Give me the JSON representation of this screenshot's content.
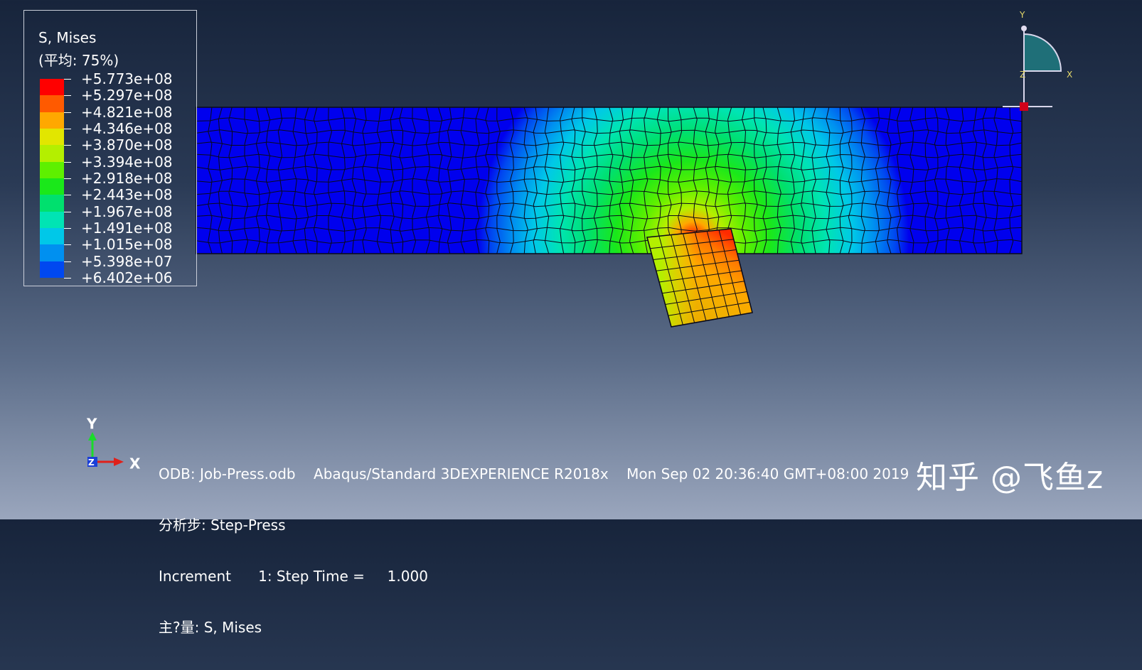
{
  "legend": {
    "title": "S, Mises",
    "subtitle": "(平均: 75%)",
    "values": [
      "+5.773e+08",
      "+5.297e+08",
      "+4.821e+08",
      "+4.346e+08",
      "+3.870e+08",
      "+3.394e+08",
      "+2.918e+08",
      "+2.443e+08",
      "+1.967e+08",
      "+1.491e+08",
      "+1.015e+08",
      "+5.398e+07",
      "+6.402e+06"
    ],
    "colors": [
      "#ff0000",
      "#ff5a00",
      "#ffa800",
      "#e2e600",
      "#b4ef00",
      "#5ef000",
      "#1ae81a",
      "#00e06e",
      "#00e4b4",
      "#00c8e8",
      "#0090f0",
      "#0048f0",
      "#0000ee"
    ]
  },
  "triad": {
    "x": "X",
    "y": "Y",
    "z": "Z"
  },
  "axis_triad": {
    "x": "X",
    "y": "Y",
    "z": "Z"
  },
  "info": {
    "line1": "ODB: Job-Press.odb    Abaqus/Standard 3DEXPERIENCE R2018x    Mon Sep 02 20:36:40 GMT+08:00 2019",
    "line2": "分析步: Step-Press",
    "line3": "Increment      1: Step Time =     1.000",
    "line4": "主?量: S, Mises"
  },
  "watermark": "知乎 @飞鱼z",
  "colors": {
    "mesh_line": "#0a0a1a",
    "background_top": "#17243b",
    "background_bottom": "#9aa6bd"
  }
}
